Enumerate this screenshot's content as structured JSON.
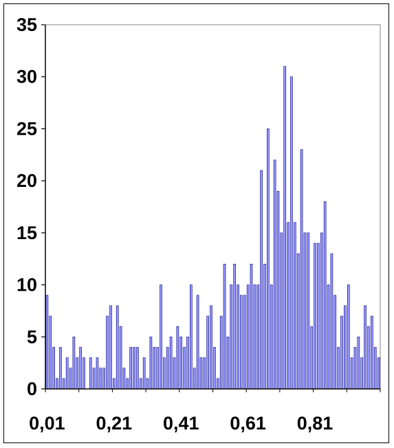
{
  "chart_data": {
    "type": "bar",
    "title": "",
    "xlabel": "",
    "ylabel": "",
    "ylim": [
      0,
      35
    ],
    "y_ticks": [
      "0",
      "5",
      "10",
      "15",
      "20",
      "25",
      "30",
      "35"
    ],
    "x_tick_labels": [
      "0,01",
      "0,21",
      "0,41",
      "0,61",
      "0,81"
    ],
    "x_start": 0.01,
    "x_step": 0.01,
    "grid": false,
    "legend": "none",
    "bar_color": "#9999ff",
    "bar_edge_color": "#000080",
    "values": [
      9,
      7,
      4,
      1,
      4,
      1,
      3,
      2,
      5,
      3,
      4,
      3,
      0,
      3,
      2,
      3,
      2,
      2,
      7,
      8,
      1,
      8,
      6,
      2,
      1,
      4,
      4,
      4,
      1,
      3,
      1,
      5,
      4,
      4,
      10,
      3,
      4,
      5,
      3,
      6,
      5,
      4,
      5,
      10,
      2,
      9,
      3,
      3,
      7,
      8,
      4,
      1,
      7,
      12,
      5,
      10,
      12,
      10,
      9,
      9,
      10,
      12,
      10,
      10,
      21,
      12,
      25,
      10,
      22,
      19,
      15,
      31,
      16,
      30,
      16,
      13,
      23,
      15,
      15,
      6,
      14,
      14,
      15,
      18,
      10,
      13,
      9,
      4,
      7,
      8,
      10,
      3,
      4,
      5,
      3,
      8,
      6,
      7,
      4,
      3
    ]
  }
}
